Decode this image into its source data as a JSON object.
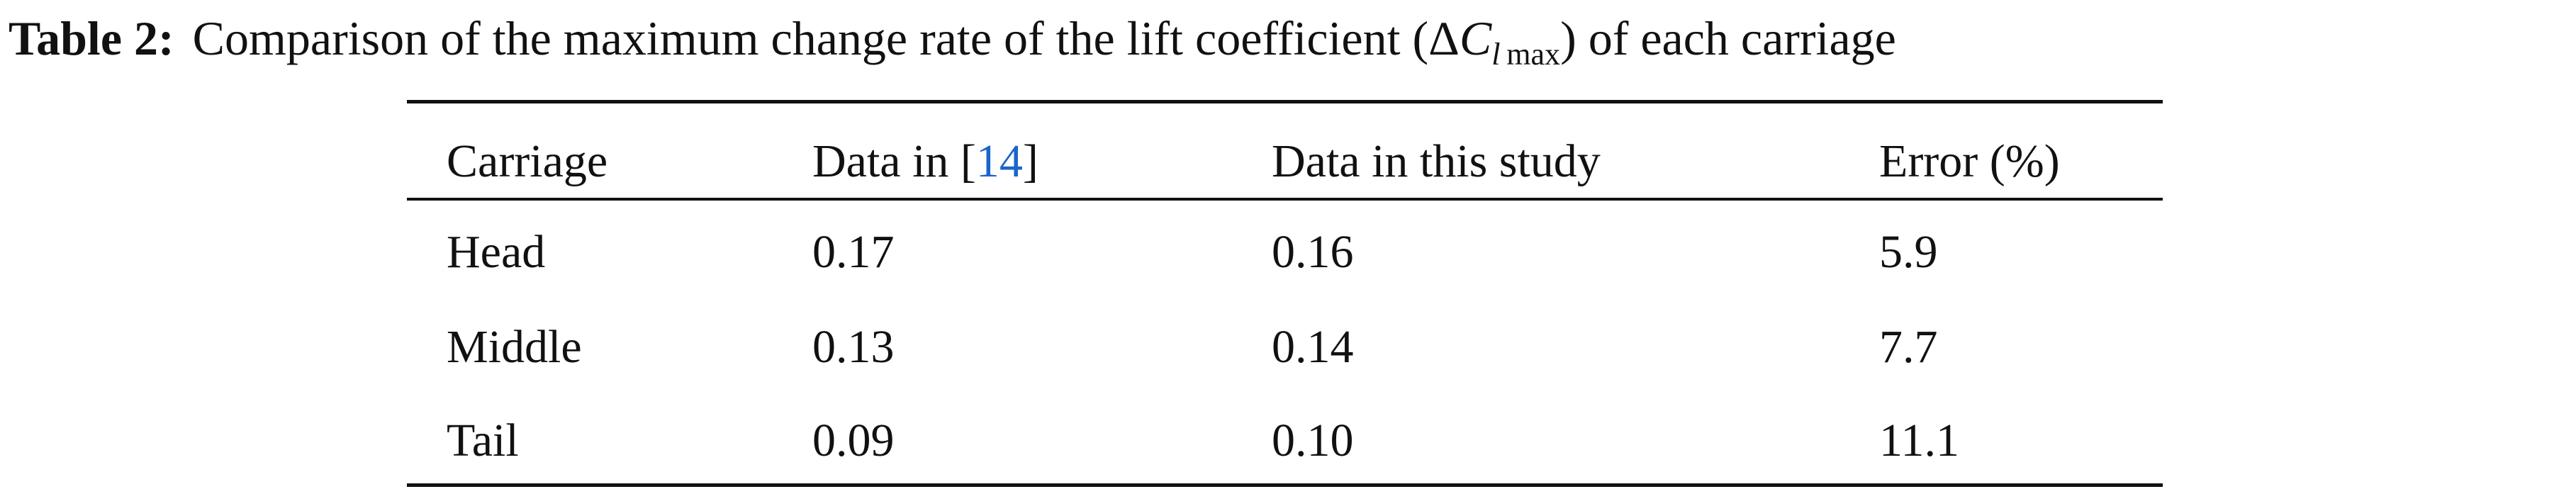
{
  "caption": {
    "label": "Table 2:",
    "text": "Comparison of the maximum change rate of the lift coefficient (",
    "delta": "Δ",
    "symbol": "C",
    "subscript_var": "l",
    "subscript": "max",
    "text_end": ") of each carriage"
  },
  "table": {
    "header": [
      "Carriage",
      {
        "text": "Data in [",
        "citation": "14",
        "text_end": "]"
      },
      "Data in this study",
      "Error (%)"
    ],
    "rows": [
      [
        "Head",
        "0.17",
        "0.16",
        "5.9"
      ],
      [
        "Middle",
        "0.13",
        "0.14",
        "7.7"
      ],
      [
        "Tail",
        "0.09",
        "0.10",
        "11.1"
      ]
    ]
  }
}
